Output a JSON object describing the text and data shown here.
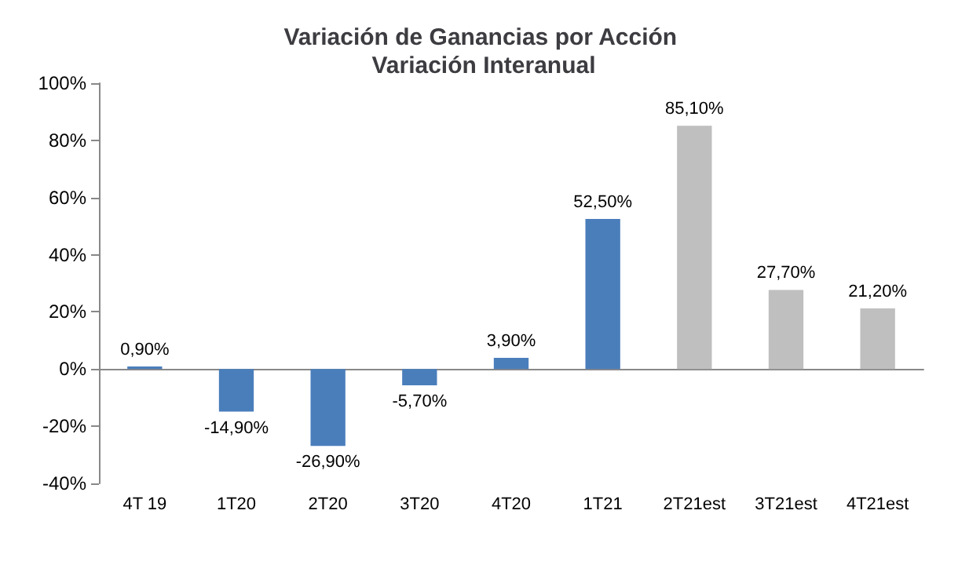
{
  "chart_data": {
    "type": "bar",
    "title": "Variación de Ganancias por Acción Variación Interanual",
    "categories": [
      "4T 19",
      "1T20",
      "2T20",
      "3T20",
      "4T20",
      "1T21",
      "2T21est",
      "3T21est",
      "4T21est"
    ],
    "values": [
      0.9,
      -14.9,
      -26.9,
      -5.7,
      3.9,
      52.5,
      85.1,
      27.7,
      21.2
    ],
    "colors": [
      "#4a7ebb",
      "#4a7ebb",
      "#4a7ebb",
      "#4a7ebb",
      "#4a7ebb",
      "#4a7ebb",
      "#bfbfbf",
      "#bfbfbf",
      "#bfbfbf"
    ],
    "value_labels": [
      "0,90%",
      "-14,90%",
      "-26,90%",
      "-5,70%",
      "3,90%",
      "52,50%",
      "85,10%",
      "27,70%",
      "21,20%"
    ],
    "ylim": [
      -40,
      100
    ],
    "yticks": [
      {
        "value": -40,
        "label": "-40%"
      },
      {
        "value": -20,
        "label": "-20%"
      },
      {
        "value": 0,
        "label": "0%"
      },
      {
        "value": 20,
        "label": "20%"
      },
      {
        "value": 40,
        "label": "40%"
      },
      {
        "value": 60,
        "label": "60%"
      },
      {
        "value": 80,
        "label": "80%"
      },
      {
        "value": 100,
        "label": "100%"
      }
    ]
  }
}
